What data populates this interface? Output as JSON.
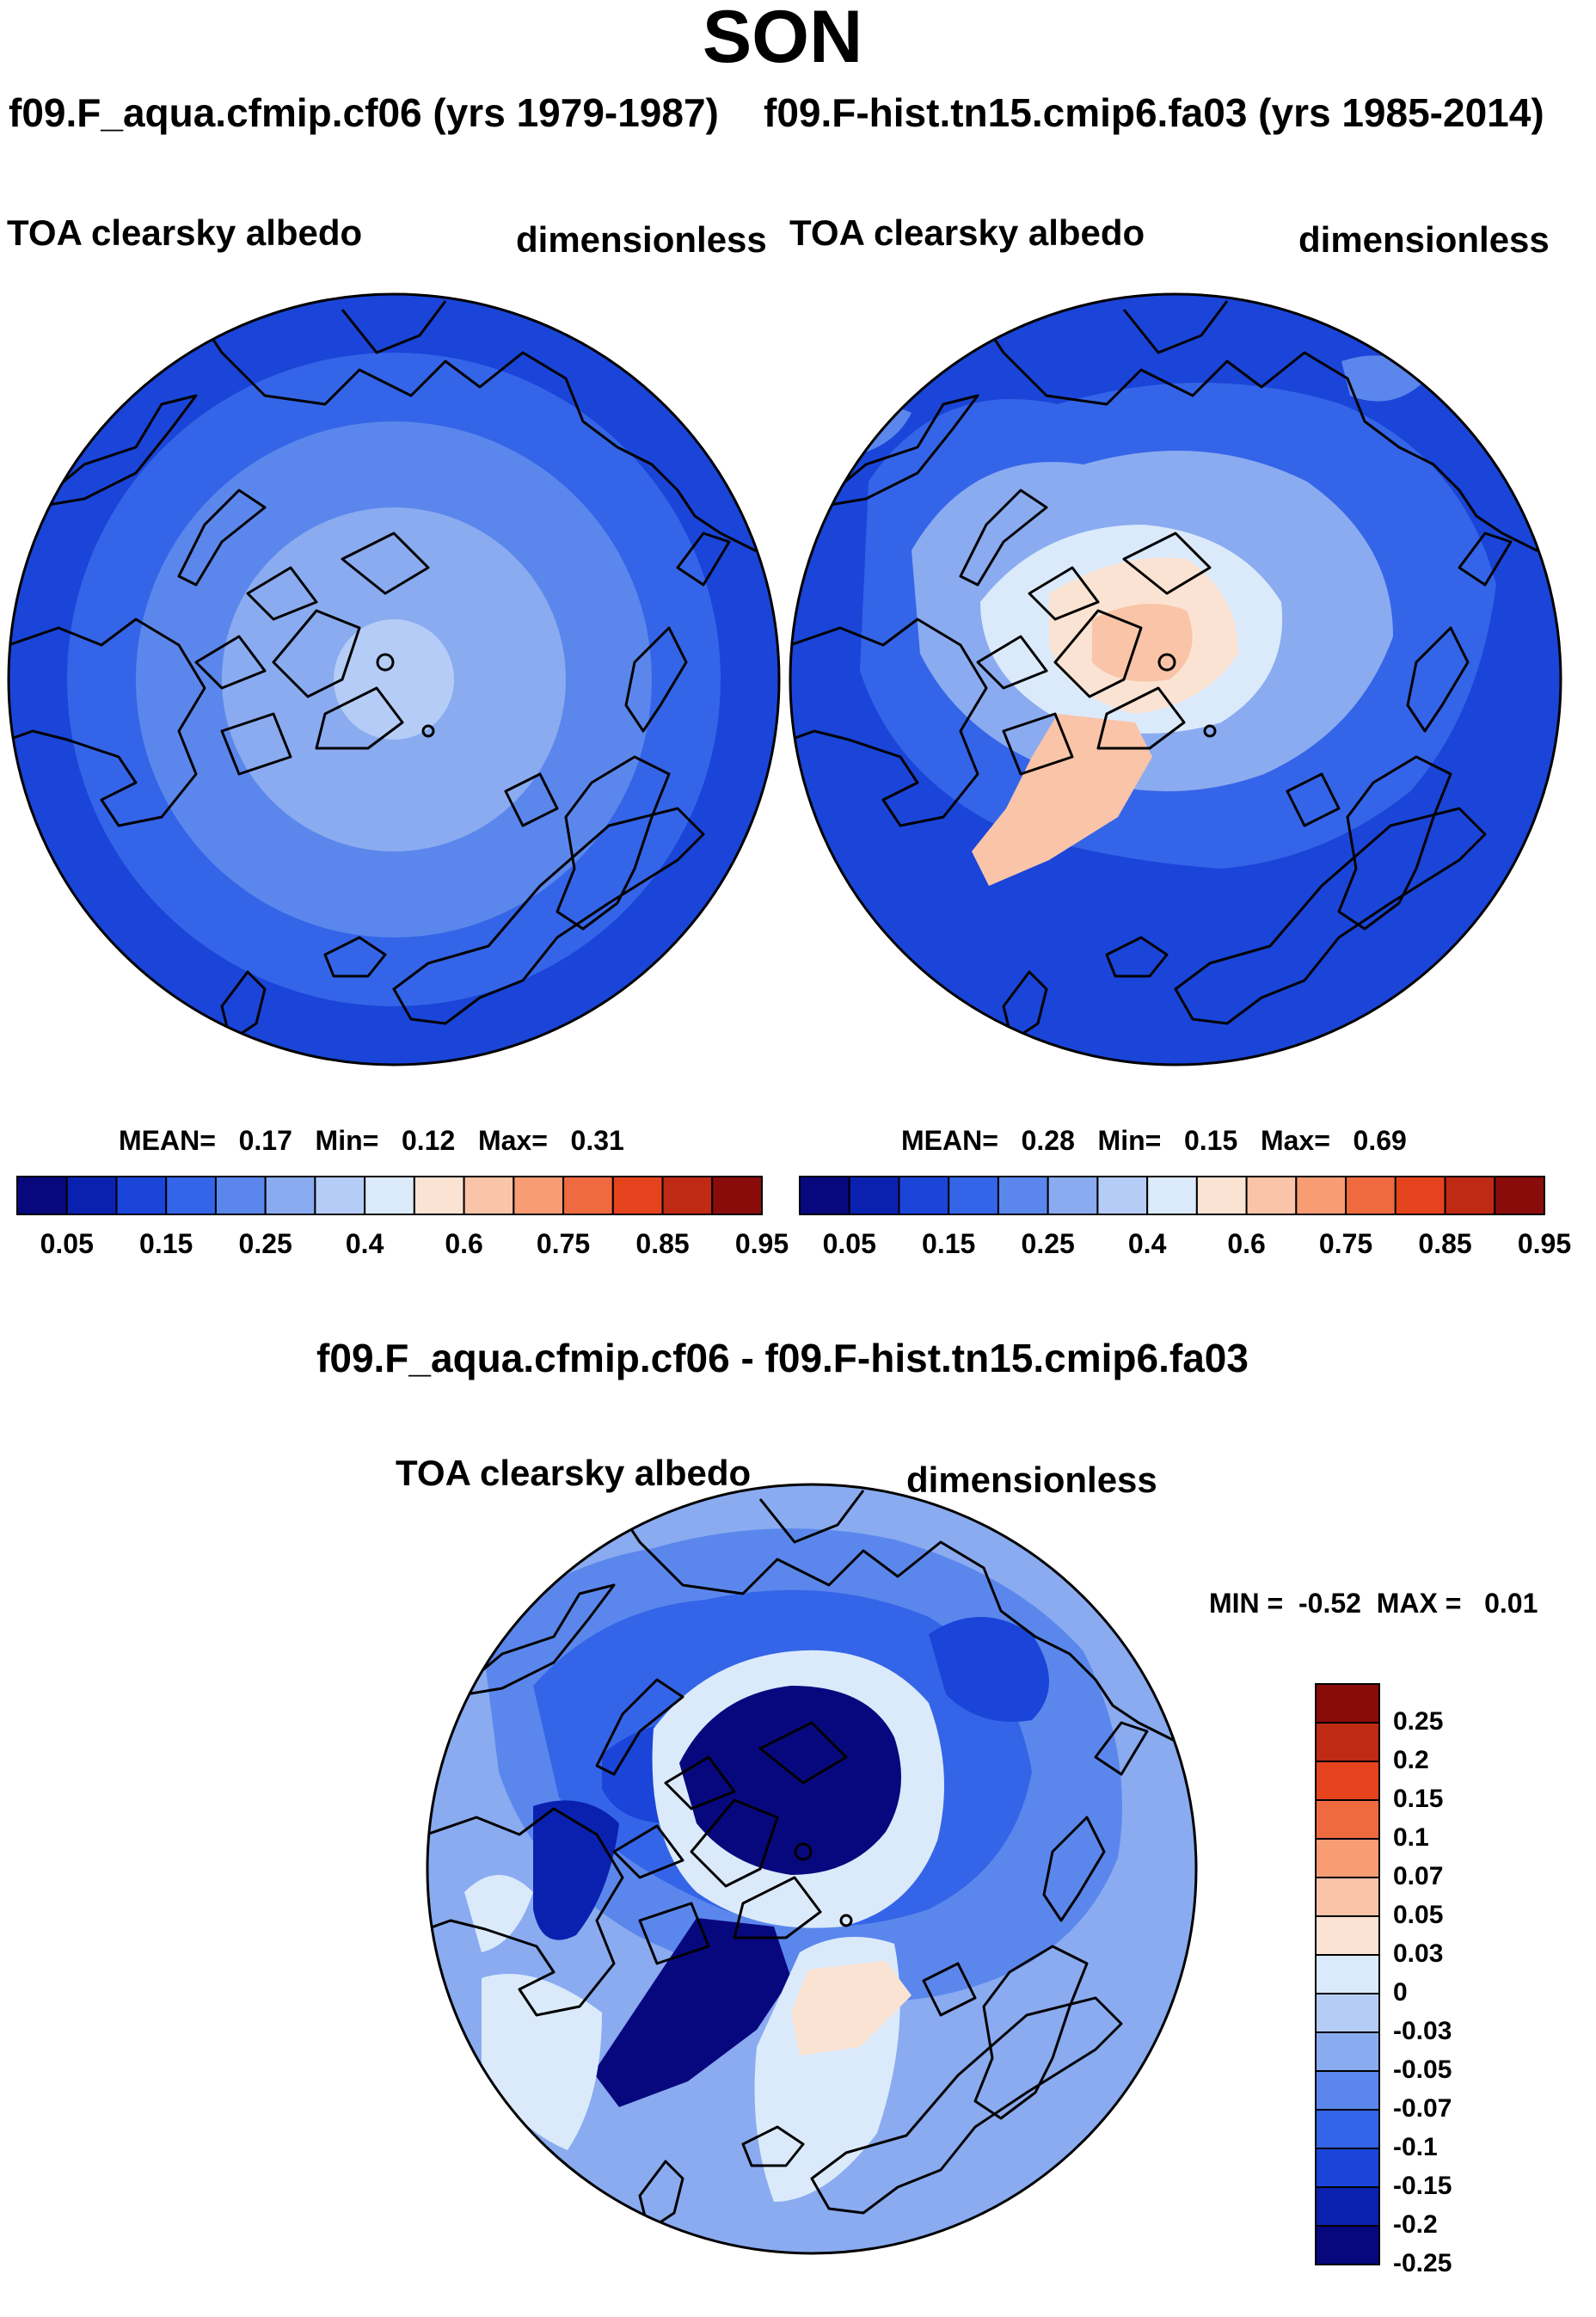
{
  "season": "SON",
  "left_panel": {
    "case_title": "f09.F_aqua.cfmip.cf06 (yrs 1979-1987)",
    "variable": "TOA clearsky albedo",
    "units": "dimensionless",
    "stats": {
      "mean_label": "MEAN=",
      "mean": "0.17",
      "min_label": "Min=",
      "min": "0.12",
      "max_label": "Max=",
      "max": "0.31"
    }
  },
  "right_panel": {
    "case_title": "f09.F-hist.tn15.cmip6.fa03 (yrs 1985-2014)",
    "variable": "TOA clearsky albedo",
    "units": "dimensionless",
    "stats": {
      "mean_label": "MEAN=",
      "mean": "0.28",
      "min_label": "Min=",
      "min": "0.15",
      "max_label": "Max=",
      "max": "0.69"
    }
  },
  "abs_colorbar": {
    "labels": [
      "0.05",
      "0.15",
      "0.25",
      "0.4",
      "0.6",
      "0.75",
      "0.85",
      "0.95"
    ],
    "colors": [
      "#08087e",
      "#0a21b0",
      "#1a45d8",
      "#3465e8",
      "#5b87ec",
      "#8aabf0",
      "#b5cdf6",
      "#dbeafb",
      "#fbe3d3",
      "#f9c4a8",
      "#f79c73",
      "#f06a40",
      "#e5431d",
      "#be2a14",
      "#8a0c0a"
    ]
  },
  "diff_panel": {
    "title": "f09.F_aqua.cfmip.cf06 - f09.F-hist.tn15.cmip6.fa03",
    "variable": "TOA clearsky albedo",
    "units": "dimensionless",
    "minmax": {
      "min_label": "MIN =",
      "min": "-0.52",
      "max_label": "MAX =",
      "max": "0.01"
    }
  },
  "diff_colorbar": {
    "labels": [
      "0.25",
      "0.2",
      "0.15",
      "0.1",
      "0.07",
      "0.05",
      "0.03",
      "0",
      "-0.03",
      "-0.05",
      "-0.07",
      "-0.1",
      "-0.15",
      "-0.2",
      "-0.25"
    ],
    "colors": [
      "#8a0c0a",
      "#be2a14",
      "#e5431d",
      "#f06a40",
      "#f79c73",
      "#f9c4a8",
      "#fbe3d3",
      "#dbeafb",
      "#b5cdf6",
      "#8aabf0",
      "#5b87ec",
      "#3465e8",
      "#1a45d8",
      "#0a21b0",
      "#08087e"
    ]
  }
}
